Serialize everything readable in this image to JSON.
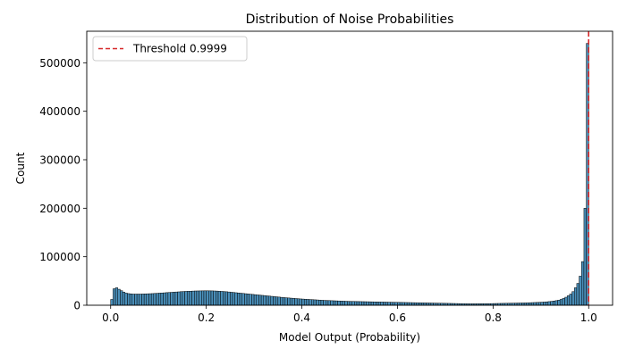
{
  "chart_data": {
    "type": "bar",
    "title": "Distribution of Noise Probabilities",
    "xlabel": "Model Output (Probability)",
    "ylabel": "Count",
    "xlim": [
      -0.05,
      1.05
    ],
    "ylim": [
      0,
      565000
    ],
    "xticks": [
      0.0,
      0.2,
      0.4,
      0.6,
      0.8,
      1.0
    ],
    "xtick_labels": [
      "0.0",
      "0.2",
      "0.4",
      "0.6",
      "0.8",
      "1.0"
    ],
    "yticks": [
      0,
      100000,
      200000,
      300000,
      400000,
      500000
    ],
    "ytick_labels": [
      "0",
      "100000",
      "200000",
      "300000",
      "400000",
      "500000"
    ],
    "grid": false,
    "bins": 200,
    "bin_width": 0.005,
    "bar_color": "#4a8fba",
    "bar_edge_color": "#000000",
    "counts": [
      12000,
      34000,
      36000,
      33000,
      30000,
      27000,
      25000,
      24000,
      23500,
      23000,
      23000,
      23000,
      23000,
      23200,
      23400,
      23600,
      23800,
      24000,
      24300,
      24600,
      25000,
      25300,
      25600,
      26000,
      26300,
      26600,
      27000,
      27300,
      27600,
      28000,
      28300,
      28600,
      28800,
      29000,
      29200,
      29400,
      29500,
      29600,
      29700,
      29800,
      29800,
      29700,
      29600,
      29400,
      29200,
      28900,
      28600,
      28200,
      27800,
      27300,
      26800,
      26300,
      25800,
      25300,
      24800,
      24300,
      23800,
      23300,
      22800,
      22300,
      21800,
      21300,
      20800,
      20300,
      19800,
      19300,
      18800,
      18300,
      17800,
      17300,
      16800,
      16300,
      15800,
      15400,
      15000,
      14600,
      14200,
      13800,
      13400,
      13000,
      12700,
      12400,
      12100,
      11800,
      11500,
      11200,
      10900,
      10600,
      10300,
      10000,
      9800,
      9600,
      9400,
      9200,
      9000,
      8800,
      8600,
      8400,
      8200,
      8000,
      7900,
      7800,
      7700,
      7600,
      7500,
      7400,
      7300,
      7200,
      7100,
      7000,
      6900,
      6800,
      6700,
      6600,
      6500,
      6400,
      6300,
      6200,
      6100,
      6000,
      5900,
      5800,
      5700,
      5600,
      5500,
      5400,
      5300,
      5200,
      5100,
      5000,
      4900,
      4800,
      4700,
      4600,
      4500,
      4400,
      4300,
      4200,
      4100,
      4000,
      3900,
      3800,
      3700,
      3600,
      3500,
      3400,
      3300,
      3200,
      3100,
      3000,
      3000,
      3000,
      3000,
      3100,
      3100,
      3200,
      3200,
      3300,
      3300,
      3400,
      3500,
      3600,
      3700,
      3800,
      3900,
      4000,
      4100,
      4200,
      4300,
      4400,
      4500,
      4600,
      4700,
      4800,
      5000,
      5200,
      5400,
      5600,
      5800,
      6000,
      6300,
      6600,
      7000,
      7500,
      8000,
      8700,
      9500,
      10500,
      12000,
      14000,
      16500,
      19500,
      23000,
      28000,
      36000,
      45000,
      60000,
      90000,
      200000,
      540000
    ],
    "threshold": {
      "value": 0.9999,
      "label": "Threshold 0.9999",
      "color": "#d62728",
      "style": "dashed"
    },
    "legend_position": "upper-left"
  }
}
